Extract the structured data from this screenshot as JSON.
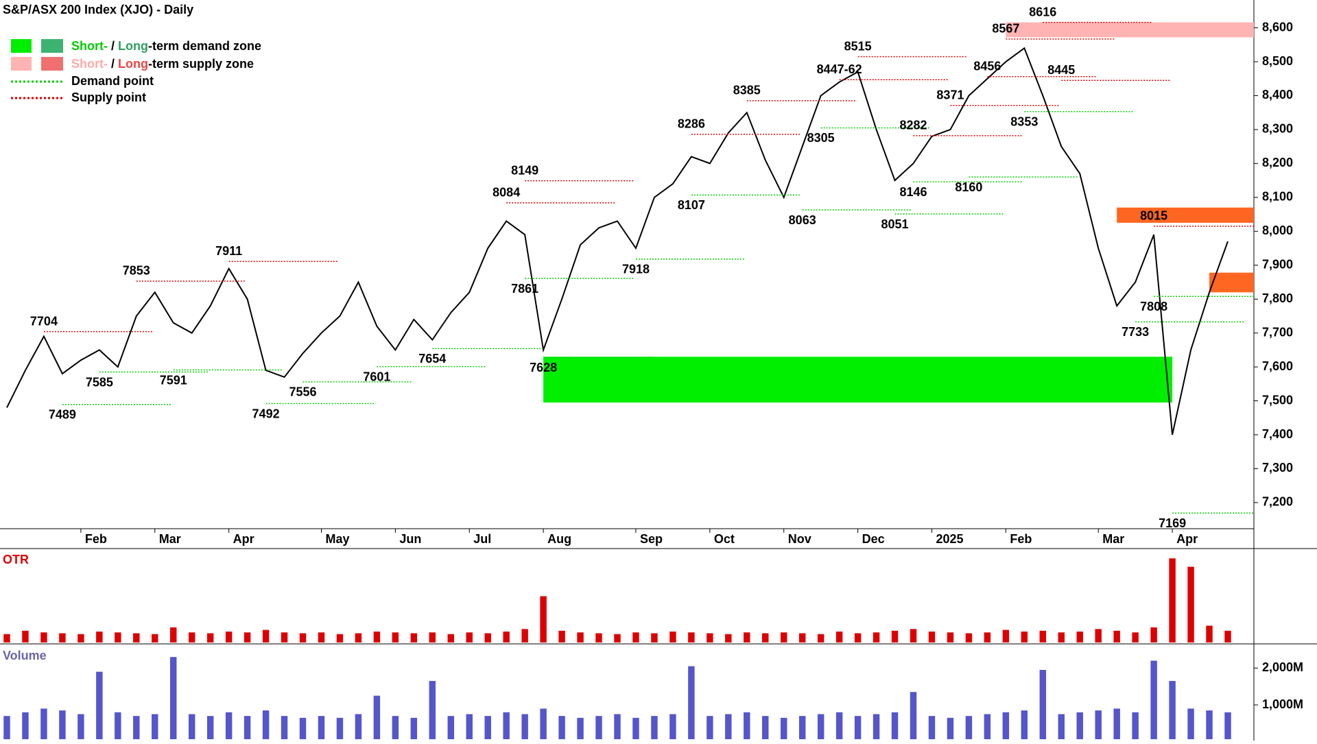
{
  "chart_data": [
    {
      "type": "line",
      "title": "S&P/ASX 200 Index (XJO) - Daily",
      "legend": [
        {
          "parts": [
            "Short-",
            " / ",
            "Long",
            "-term demand zone"
          ]
        },
        {
          "parts": [
            "Short-",
            " / ",
            "Long",
            "-term supply zone"
          ]
        },
        {
          "parts": [
            "Demand point"
          ]
        },
        {
          "parts": [
            "Supply point"
          ]
        }
      ],
      "categories": [
        null,
        null,
        null,
        null,
        "Feb",
        null,
        null,
        null,
        "Mar",
        null,
        null,
        null,
        "Apr",
        null,
        null,
        null,
        null,
        "May",
        null,
        null,
        null,
        "Jun",
        null,
        null,
        null,
        "Jul",
        null,
        null,
        null,
        "Aug",
        null,
        null,
        null,
        null,
        "Sep",
        null,
        null,
        null,
        "Oct",
        null,
        null,
        null,
        "Nov",
        null,
        null,
        null,
        "Dec",
        null,
        null,
        null,
        "2025",
        null,
        null,
        null,
        "Feb",
        null,
        null,
        null,
        null,
        "Mar",
        null,
        null,
        null,
        "Apr",
        null,
        null,
        null
      ],
      "series": [
        {
          "color": "#000000",
          "values": [
            7480,
            7590,
            7690,
            7580,
            7620,
            7650,
            7600,
            7750,
            7820,
            7730,
            7700,
            7780,
            7890,
            7800,
            7590,
            7570,
            7640,
            7700,
            7750,
            7850,
            7720,
            7650,
            7740,
            7680,
            7760,
            7820,
            7950,
            8030,
            7990,
            7650,
            7800,
            7960,
            8010,
            8030,
            7950,
            8100,
            8140,
            8220,
            8200,
            8290,
            8350,
            8210,
            8100,
            8250,
            8400,
            8440,
            8470,
            8300,
            8150,
            8200,
            8280,
            8300,
            8400,
            8450,
            8500,
            8540,
            8400,
            8250,
            8170,
            7950,
            7780,
            7850,
            7990,
            7400,
            7650,
            7820,
            7970
          ]
        }
      ],
      "annotations": [
        {
          "value": 7704,
          "at": 2
        },
        {
          "value": 7489,
          "at": 3
        },
        {
          "value": 7585,
          "at": 5
        },
        {
          "value": 7853,
          "at": 7
        },
        {
          "value": 7591,
          "at": 9
        },
        {
          "value": 7911,
          "at": 12
        },
        {
          "value": 7492,
          "at": 14
        },
        {
          "value": 7556,
          "at": 16
        },
        {
          "value": 7601,
          "at": 20
        },
        {
          "value": 7654,
          "at": 23
        },
        {
          "value": 8084,
          "at": 27
        },
        {
          "value": 8149,
          "at": 28
        },
        {
          "value": 7861,
          "at": 28
        },
        {
          "value": 7628,
          "at": 29
        },
        {
          "value": 7918,
          "at": 34
        },
        {
          "value": 8286,
          "at": 37
        },
        {
          "value": 8107,
          "at": 37
        },
        {
          "value": 8385,
          "at": 40
        },
        {
          "value": 8063,
          "at": 43
        },
        {
          "value": 8305,
          "at": 44
        },
        {
          "value": 8447,
          "label": "8447-62",
          "at": 45
        },
        {
          "value": 8515,
          "at": 46
        },
        {
          "value": 8051,
          "at": 48
        },
        {
          "value": 8282,
          "at": 49
        },
        {
          "value": 8146,
          "at": 49
        },
        {
          "value": 8371,
          "at": 51
        },
        {
          "value": 8160,
          "at": 52
        },
        {
          "value": 8456,
          "at": 53
        },
        {
          "value": 8567,
          "at": 54
        },
        {
          "value": 8353,
          "at": 55
        },
        {
          "value": 8616,
          "at": 56
        },
        {
          "value": 8445,
          "at": 57
        },
        {
          "value": 7733,
          "at": 61
        },
        {
          "value": 8015,
          "at": 62
        },
        {
          "value": 7808,
          "at": 62
        },
        {
          "value": 7169,
          "at": 63
        }
      ],
      "zones": [
        {
          "range": [
            7495,
            7630
          ],
          "from": 29,
          "to": 63,
          "color": "#00ee00"
        },
        {
          "range": [
            8572,
            8616
          ],
          "from": 54,
          "to": 66,
          "color": "#ffb3b3"
        },
        {
          "range": [
            8025,
            8070
          ],
          "from": 60,
          "to": 66,
          "color": "#ff6622"
        },
        {
          "range": [
            7820,
            7878
          ],
          "from": 65,
          "to": 66,
          "color": "#ff6622"
        }
      ],
      "ylim": [
        7123,
        8682
      ],
      "yticks": [
        {
          "value": 7200,
          "label": "7,200"
        },
        {
          "value": 7300,
          "label": "7,300"
        },
        {
          "value": 7400,
          "label": "7,400"
        },
        {
          "value": 7500,
          "label": "7,500"
        },
        {
          "value": 7600,
          "label": "7,600"
        },
        {
          "value": 7700,
          "label": "7,700"
        },
        {
          "value": 7800,
          "label": "7,800"
        },
        {
          "value": 7900,
          "label": "7,900"
        },
        {
          "value": 8000,
          "label": "8,000"
        },
        {
          "value": 8100,
          "label": "8,100"
        },
        {
          "value": 8200,
          "label": "8,200"
        },
        {
          "value": 8300,
          "label": "8,300"
        },
        {
          "value": 8400,
          "label": "8,400"
        },
        {
          "value": 8500,
          "label": "8,500"
        },
        {
          "value": 8600,
          "label": "8,600"
        }
      ]
    },
    {
      "type": "bar",
      "title": "OTR",
      "color": "#dd0000",
      "ylim": [
        0,
        110
      ],
      "values": [
        10,
        14,
        12,
        11,
        10,
        13,
        12,
        11,
        10,
        18,
        12,
        11,
        13,
        12,
        15,
        12,
        11,
        12,
        10,
        11,
        13,
        12,
        11,
        12,
        10,
        12,
        11,
        13,
        16,
        55,
        14,
        12,
        11,
        10,
        12,
        11,
        13,
        12,
        11,
        10,
        12,
        11,
        12,
        11,
        10,
        13,
        11,
        12,
        14,
        16,
        13,
        12,
        11,
        12,
        15,
        13,
        14,
        12,
        13,
        16,
        14,
        12,
        18,
        100,
        90,
        20,
        14
      ]
    },
    {
      "type": "bar",
      "title": "Volume",
      "color": "#5555cc",
      "ylim": [
        70,
        2600
      ],
      "yticks": [
        {
          "value": 1000,
          "label": "1,000M"
        },
        {
          "value": 2000,
          "label": "2,000M"
        }
      ],
      "values": [
        700,
        800,
        900,
        850,
        750,
        1900,
        800,
        700,
        750,
        2300,
        750,
        700,
        800,
        700,
        850,
        700,
        650,
        700,
        650,
        750,
        1250,
        700,
        650,
        1650,
        700,
        750,
        700,
        800,
        750,
        900,
        700,
        650,
        700,
        750,
        650,
        700,
        750,
        2050,
        700,
        750,
        800,
        700,
        650,
        700,
        750,
        800,
        700,
        750,
        800,
        1350,
        700,
        650,
        700,
        750,
        800,
        850,
        1950,
        750,
        800,
        850,
        900,
        800,
        2200,
        1650,
        900,
        850,
        800
      ]
    }
  ]
}
